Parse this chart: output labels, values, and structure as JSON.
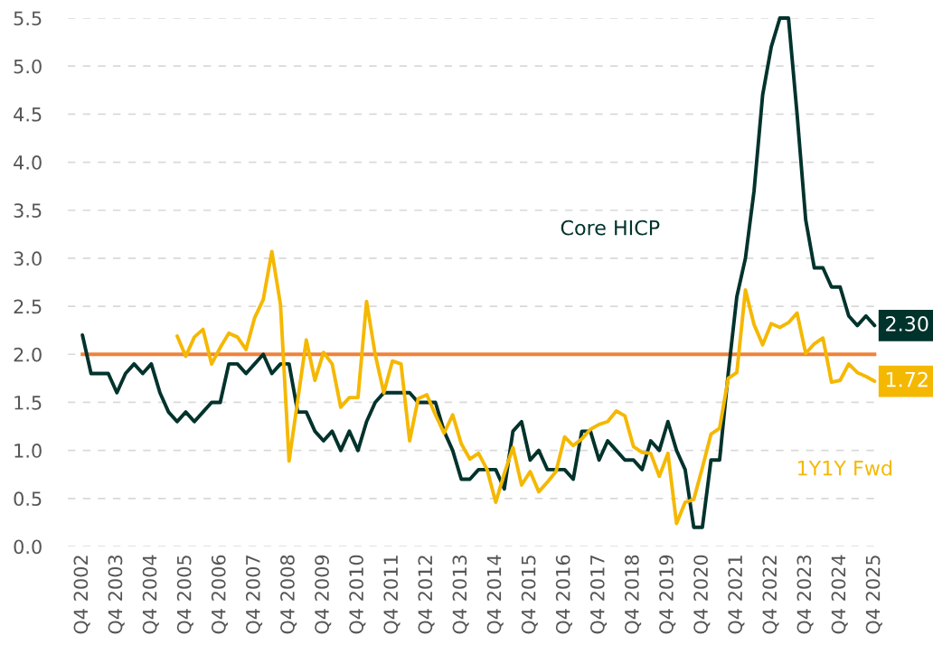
{
  "chart_data": {
    "type": "line",
    "categories": [
      "Q4 2002",
      null,
      null,
      null,
      "Q4 2003",
      null,
      null,
      null,
      "Q4 2004",
      null,
      null,
      null,
      "Q4 2005",
      null,
      null,
      null,
      "Q4 2006",
      null,
      null,
      null,
      "Q4 2007",
      null,
      null,
      null,
      "Q4 2008",
      null,
      null,
      null,
      "Q4 2009",
      null,
      null,
      null,
      "Q4 2010",
      null,
      null,
      null,
      "Q4 2011",
      null,
      null,
      null,
      "Q4 2012",
      null,
      null,
      null,
      "Q4 2013",
      null,
      null,
      null,
      "Q4 2014",
      null,
      null,
      null,
      "Q4 2015",
      null,
      null,
      null,
      "Q4 2016",
      null,
      null,
      null,
      "Q4 2017",
      null,
      null,
      null,
      "Q4 2018",
      null,
      null,
      null,
      "Q4 2019",
      null,
      null,
      null,
      "Q4 2020",
      null,
      null,
      null,
      "Q4 2021",
      null,
      null,
      null,
      "Q4 2022",
      null,
      null,
      null,
      "Q4 2023",
      null,
      null,
      null,
      "Q4 2024",
      null,
      null,
      null,
      "Q4 2025"
    ],
    "series": [
      {
        "name": "Core HICP",
        "color": "#00332c",
        "values": [
          2.2,
          1.8,
          1.8,
          1.8,
          1.6,
          1.8,
          1.9,
          1.8,
          1.9,
          1.6,
          1.4,
          1.3,
          1.4,
          1.3,
          1.4,
          1.5,
          1.5,
          1.9,
          1.9,
          1.8,
          1.9,
          2.0,
          1.8,
          1.9,
          1.9,
          1.4,
          1.4,
          1.2,
          1.1,
          1.2,
          1.0,
          1.2,
          1.0,
          1.3,
          1.5,
          1.6,
          1.6,
          1.6,
          1.6,
          1.5,
          1.5,
          1.5,
          1.2,
          1.0,
          0.7,
          0.7,
          0.8,
          0.8,
          0.8,
          0.6,
          1.2,
          1.3,
          0.9,
          1.0,
          0.8,
          0.8,
          0.8,
          0.7,
          1.2,
          1.2,
          0.9,
          1.1,
          1.0,
          0.9,
          0.9,
          0.8,
          1.1,
          1.0,
          1.3,
          1.0,
          0.8,
          0.2,
          0.2,
          0.9,
          0.9,
          1.8,
          2.6,
          3.0,
          3.7,
          4.7,
          5.2,
          5.5,
          5.5,
          4.5,
          3.4,
          2.9,
          2.9,
          2.7,
          2.7,
          2.4,
          2.3,
          2.4,
          2.3
        ],
        "value_labels": [
          null,
          null,
          null,
          null,
          null,
          null,
          null,
          null,
          null,
          null,
          null,
          null,
          null,
          null,
          null,
          null,
          null,
          null,
          null,
          null,
          null,
          null,
          null,
          null,
          null,
          null,
          null,
          null,
          null,
          null,
          null,
          null,
          null,
          null,
          null,
          null,
          null,
          null,
          null,
          null,
          null,
          null,
          null,
          null,
          null,
          null,
          null,
          null,
          null,
          null,
          null,
          null,
          null,
          null,
          null,
          null,
          null,
          null,
          null,
          null,
          null,
          null,
          null,
          null,
          null,
          null,
          null,
          null,
          null,
          null,
          null,
          null,
          null,
          null,
          null,
          null,
          null,
          null,
          null,
          null,
          null,
          null,
          null,
          null,
          null,
          null,
          null,
          null,
          null,
          null,
          null,
          null,
          "2.30"
        ]
      },
      {
        "name": "1Y1Y Fwd",
        "color": "#f5b800",
        "values": [
          null,
          null,
          null,
          null,
          null,
          null,
          null,
          null,
          null,
          null,
          null,
          2.19,
          1.98,
          2.18,
          2.26,
          1.9,
          2.07,
          2.22,
          2.18,
          2.05,
          2.38,
          2.57,
          3.07,
          2.52,
          0.89,
          1.52,
          2.15,
          1.73,
          2.02,
          1.9,
          1.45,
          1.55,
          1.55,
          2.55,
          2.0,
          1.6,
          1.93,
          1.9,
          1.1,
          1.54,
          1.58,
          1.37,
          1.18,
          1.37,
          1.07,
          0.91,
          0.97,
          0.8,
          0.46,
          0.76,
          1.03,
          0.64,
          0.78,
          0.57,
          0.67,
          0.78,
          1.14,
          1.05,
          1.12,
          1.22,
          1.27,
          1.3,
          1.41,
          1.36,
          1.04,
          0.98,
          0.97,
          0.73,
          0.97,
          0.24,
          0.46,
          0.49,
          0.82,
          1.17,
          1.23,
          1.75,
          1.81,
          2.67,
          2.31,
          2.1,
          2.32,
          2.28,
          2.33,
          2.43,
          2.01,
          2.11,
          2.17,
          1.71,
          1.73,
          1.9,
          1.81,
          1.77,
          1.72
        ],
        "value_labels": [
          null,
          null,
          null,
          null,
          null,
          null,
          null,
          null,
          null,
          null,
          null,
          null,
          null,
          null,
          null,
          null,
          null,
          null,
          null,
          null,
          null,
          null,
          null,
          null,
          null,
          null,
          null,
          null,
          null,
          null,
          null,
          null,
          null,
          null,
          null,
          null,
          null,
          null,
          null,
          null,
          null,
          null,
          null,
          null,
          null,
          null,
          null,
          null,
          null,
          null,
          null,
          null,
          null,
          null,
          null,
          null,
          null,
          null,
          null,
          null,
          null,
          null,
          null,
          null,
          null,
          null,
          null,
          null,
          null,
          null,
          null,
          null,
          null,
          null,
          null,
          null,
          null,
          null,
          null,
          null,
          null,
          null,
          null,
          null,
          null,
          null,
          null,
          null,
          null,
          null,
          null,
          null,
          "1.72"
        ]
      }
    ],
    "ylim": [
      0,
      5.5
    ],
    "yticks": [
      {
        "value": 0,
        "label": "0.0"
      },
      {
        "value": 0.5,
        "label": "0.5"
      },
      {
        "value": 1,
        "label": "1.0"
      },
      {
        "value": 1.5,
        "label": "1.5"
      },
      {
        "value": 2,
        "label": "2.0"
      },
      {
        "value": 2.5,
        "label": "2.5"
      },
      {
        "value": 3,
        "label": "3.0"
      },
      {
        "value": 3.5,
        "label": "3.5"
      },
      {
        "value": 4,
        "label": "4.0"
      },
      {
        "value": 4.5,
        "label": "4.5"
      },
      {
        "value": 5,
        "label": "5.0"
      },
      {
        "value": 5.5,
        "label": "5.5"
      }
    ],
    "ref_lines": [
      {
        "axis": "y",
        "value": 2.0,
        "color": "#f0823a",
        "line_style": "solid"
      }
    ],
    "grid": "y",
    "legend": false,
    "marker": "none",
    "line_style": "solid"
  }
}
